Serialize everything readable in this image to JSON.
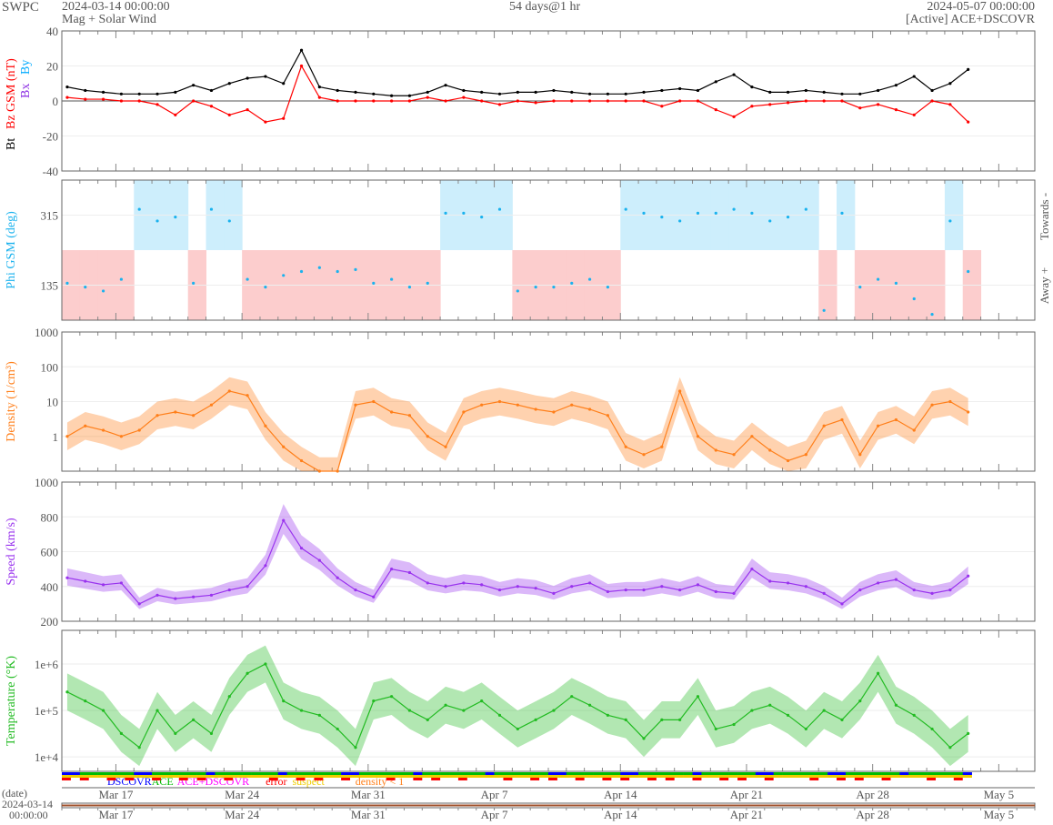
{
  "header": {
    "org": "SWPC",
    "start": "2024-03-14 00:00:00",
    "subtitle": "Mag + Solar Wind",
    "span": "54 days@1 hr",
    "end": "2024-05-07 00:00:00",
    "source": "[Active] ACE+DSCOVR"
  },
  "colors": {
    "bt": "#000000",
    "bz": "#ff0000",
    "bx": "#8a2be2",
    "by": "#00aaff",
    "phi": "#1ab2ee",
    "density": "#ff7f1a",
    "speed": "#9933ee",
    "temp": "#22bb22"
  },
  "chart_data": [
    {
      "type": "line",
      "title": "Mag",
      "ylabel_parts": [
        "Bt",
        "Bz GSM (nT)",
        "Bx",
        "By"
      ],
      "ylim": [
        -40,
        40
      ],
      "yticks": [
        "40",
        "20",
        "0",
        "-20",
        "-40"
      ],
      "ytick_values": [
        40,
        20,
        0,
        -20,
        -40
      ],
      "x_unit": "days since 2024-03-14",
      "series": [
        {
          "name": "Bt",
          "values": [
            8,
            6,
            5,
            4,
            4,
            4,
            5,
            9,
            6,
            10,
            13,
            14,
            10,
            29,
            8,
            6,
            5,
            4,
            3,
            3,
            5,
            9,
            6,
            5,
            4,
            5,
            5,
            6,
            5,
            4,
            4,
            4,
            5,
            6,
            7,
            6,
            11,
            15,
            8,
            5,
            5,
            6,
            5,
            4,
            4,
            6,
            9,
            14,
            6,
            10,
            18
          ]
        },
        {
          "name": "Bz GSM",
          "values": [
            2,
            1,
            1,
            0,
            0,
            -2,
            -8,
            0,
            -3,
            -8,
            -5,
            -12,
            -10,
            20,
            2,
            0,
            0,
            0,
            0,
            0,
            2,
            0,
            2,
            0,
            -2,
            0,
            -1,
            0,
            0,
            0,
            0,
            0,
            0,
            -3,
            0,
            0,
            -5,
            -9,
            -3,
            -2,
            -1,
            0,
            0,
            0,
            -4,
            -2,
            -5,
            -8,
            0,
            -2,
            -12
          ]
        }
      ]
    },
    {
      "type": "scatter",
      "ylabel": "Phi GSM (deg)",
      "ylim": [
        45,
        405
      ],
      "yticks": [
        "315",
        "135"
      ],
      "ytick_values": [
        315,
        135
      ],
      "right_labels": [
        "Towards -",
        "Away +"
      ],
      "series": [
        {
          "name": "Phi GSM",
          "values": [
            140,
            130,
            120,
            150,
            330,
            300,
            310,
            140,
            330,
            300,
            150,
            130,
            160,
            170,
            180,
            170,
            175,
            140,
            150,
            130,
            140,
            320,
            320,
            310,
            330,
            120,
            130,
            130,
            140,
            150,
            130,
            330,
            320,
            310,
            300,
            320,
            320,
            330,
            320,
            300,
            310,
            330,
            70,
            320,
            130,
            150,
            140,
            100,
            60,
            300,
            170
          ]
        }
      ]
    },
    {
      "type": "line",
      "scale": "log",
      "ylabel": "Density (1/cm³)",
      "ylim": [
        0.1,
        1000
      ],
      "yticks": [
        "1000",
        "100",
        "10",
        "1"
      ],
      "ytick_values": [
        1000,
        100,
        10,
        1
      ],
      "series": [
        {
          "name": "Density",
          "values": [
            1,
            2,
            1.5,
            1,
            1.5,
            4,
            5,
            4,
            8,
            20,
            15,
            2,
            0.5,
            0.2,
            0.1,
            0.1,
            8,
            10,
            5,
            4,
            1,
            0.5,
            5,
            8,
            10,
            8,
            6,
            5,
            8,
            6,
            4,
            0.5,
            0.3,
            0.5,
            20,
            1,
            0.4,
            0.3,
            1,
            0.4,
            0.2,
            0.3,
            2,
            3,
            0.3,
            2,
            3,
            1.5,
            8,
            10,
            5
          ]
        }
      ]
    },
    {
      "type": "line",
      "ylabel": "Speed (km/s)",
      "ylim": [
        200,
        1000
      ],
      "yticks": [
        "1000",
        "800",
        "600",
        "400",
        "200"
      ],
      "ytick_values": [
        1000,
        800,
        600,
        400,
        200
      ],
      "series": [
        {
          "name": "Speed",
          "values": [
            450,
            430,
            410,
            420,
            300,
            350,
            330,
            340,
            350,
            380,
            400,
            520,
            780,
            620,
            550,
            450,
            380,
            340,
            500,
            480,
            420,
            400,
            420,
            410,
            380,
            400,
            390,
            360,
            400,
            420,
            370,
            380,
            380,
            400,
            380,
            410,
            370,
            360,
            500,
            430,
            420,
            400,
            360,
            300,
            380,
            420,
            440,
            380,
            360,
            380,
            460
          ]
        }
      ]
    },
    {
      "type": "line",
      "scale": "log",
      "ylabel": "Temperature (°K)",
      "ylim": [
        4900,
        5300000
      ],
      "yticks": [
        "1e+6",
        "1e+5",
        "1e+4"
      ],
      "ytick_values": [
        1000000,
        100000,
        10000
      ],
      "series": [
        {
          "name": "Temperature",
          "values": [
            250000.0,
            160000.0,
            100000.0,
            32000.0,
            16000.0,
            100000.0,
            32000.0,
            63000.0,
            32000.0,
            200000.0,
            630000.0,
            1000000.0,
            160000.0,
            100000.0,
            79000.0,
            40000.0,
            16000.0,
            160000.0,
            200000.0,
            100000.0,
            63000.0,
            130000.0,
            100000.0,
            160000.0,
            79000.0,
            40000.0,
            63000.0,
            100000.0,
            200000.0,
            130000.0,
            79000.0,
            63000.0,
            25000.0,
            63000.0,
            63000.0,
            200000.0,
            40000.0,
            50000.0,
            100000.0,
            130000.0,
            79000.0,
            40000.0,
            100000.0,
            63000.0,
            160000.0,
            630000.0,
            130000.0,
            79000.0,
            40000.0,
            16000.0,
            32000.0
          ]
        }
      ]
    }
  ],
  "status_legend": [
    "DSCOVR",
    "ACE",
    "ACE+DSCOVR",
    "error",
    "suspect",
    "density < 1"
  ],
  "status_colors": [
    "#0000ff",
    "#00bb00",
    "#ff00ff",
    "#ff0000",
    "#eecc00",
    "#ff7f1a"
  ],
  "xaxis": {
    "labels": [
      "Mar 17",
      "Mar 24",
      "Mar 31",
      "Apr 7",
      "Apr 14",
      "Apr 21",
      "Apr 28",
      "May 5"
    ],
    "label_days": [
      3,
      10,
      17,
      24,
      31,
      38,
      45,
      52
    ],
    "total_days": 54,
    "date_label": "(date)",
    "date_start": "2024-03-14",
    "time_start": "00:00:00"
  }
}
